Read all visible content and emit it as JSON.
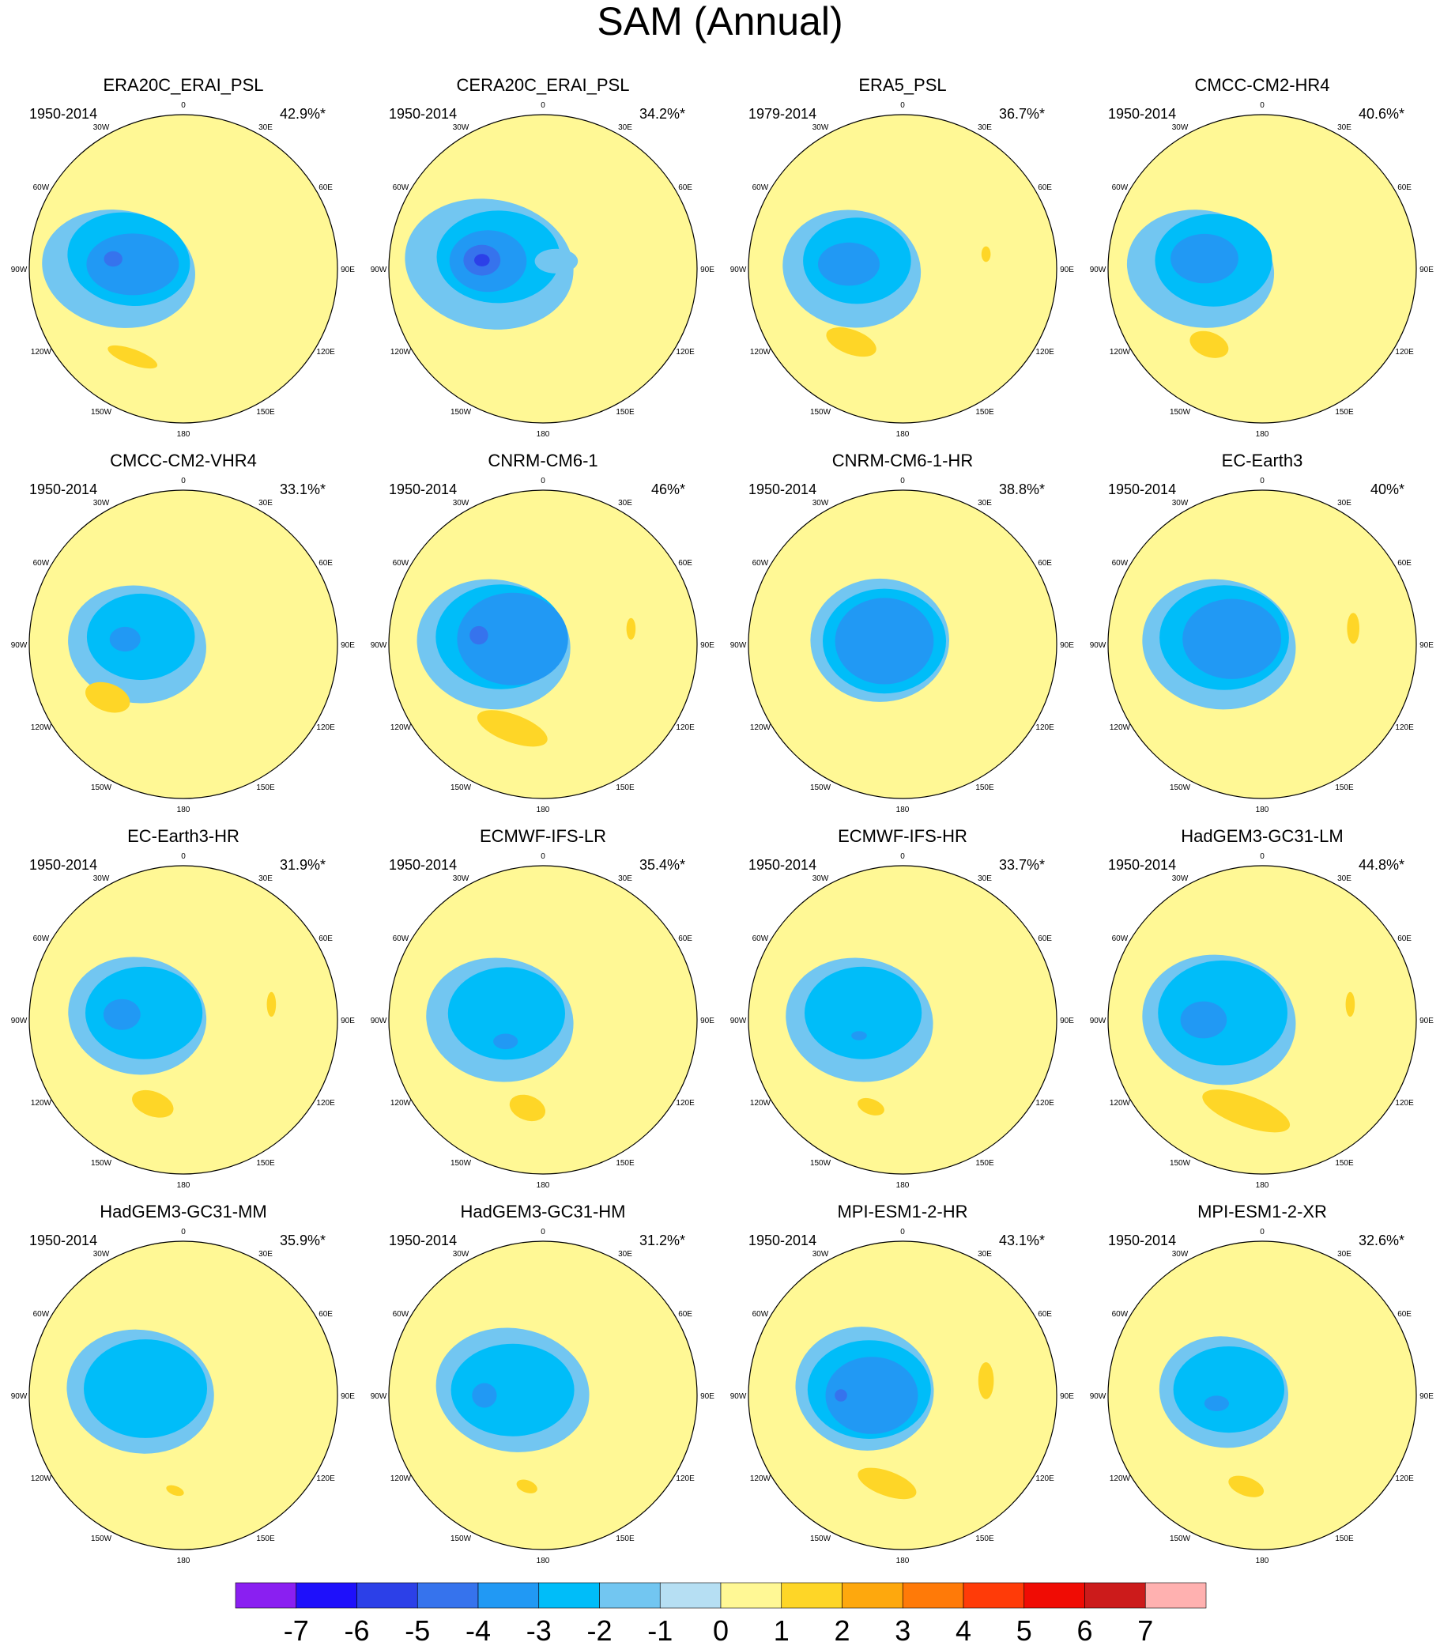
{
  "chart_data": {
    "type": "heatmap",
    "title": "SAM (Annual)",
    "projection": "south-polar stereographic",
    "longitude_labels": [
      "0",
      "30E",
      "60E",
      "90E",
      "120E",
      "150E",
      "180",
      "150W",
      "120W",
      "90W",
      "60W",
      "30W"
    ],
    "panels": [
      {
        "name": "ERA20C_ERAI_PSL",
        "period": "1950-2014",
        "variance": "42.9%*",
        "blobs": [
          {
            "lon": -90,
            "r": 0.42,
            "a": 0.5,
            "b": 0.38,
            "rot": 10,
            "value": -1
          },
          {
            "lon": -80,
            "r": 0.36,
            "a": 0.4,
            "b": 0.3,
            "rot": 10,
            "value": -2
          },
          {
            "lon": -85,
            "r": 0.33,
            "a": 0.3,
            "b": 0.2,
            "rot": 0,
            "value": -3
          },
          {
            "lon": -82,
            "r": 0.46,
            "a": 0.06,
            "b": 0.05,
            "rot": 0,
            "value": -4
          },
          {
            "lon": -150,
            "r": 0.66,
            "a": 0.17,
            "b": 0.05,
            "rot": 20,
            "value": 1.5
          }
        ]
      },
      {
        "name": "CERA20C_ERAI_PSL",
        "period": "1950-2014",
        "variance": "34.2%*",
        "blobs": [
          {
            "lon": -85,
            "r": 0.35,
            "a": 0.55,
            "b": 0.42,
            "rot": 10,
            "value": -1
          },
          {
            "lon": -75,
            "r": 0.3,
            "a": 0.4,
            "b": 0.3,
            "rot": 0,
            "value": -2
          },
          {
            "lon": -82,
            "r": 0.36,
            "a": 0.25,
            "b": 0.2,
            "rot": 0,
            "value": -3
          },
          {
            "lon": -82,
            "r": 0.4,
            "a": 0.12,
            "b": 0.1,
            "rot": 0,
            "value": -4
          },
          {
            "lon": -82,
            "r": 0.4,
            "a": 0.05,
            "b": 0.04,
            "rot": 0,
            "value": -5
          },
          {
            "lon": 60,
            "r": 0.1,
            "a": 0.14,
            "b": 0.08,
            "rot": 0,
            "value": -1
          }
        ]
      },
      {
        "name": "ERA5_PSL",
        "period": "1979-2014",
        "variance": "36.7%*",
        "blobs": [
          {
            "lon": -90,
            "r": 0.33,
            "a": 0.45,
            "b": 0.38,
            "rot": 10,
            "value": -1
          },
          {
            "lon": -80,
            "r": 0.3,
            "a": 0.35,
            "b": 0.28,
            "rot": 0,
            "value": -2
          },
          {
            "lon": -85,
            "r": 0.35,
            "a": 0.2,
            "b": 0.14,
            "rot": 0,
            "value": -3
          },
          {
            "lon": -145,
            "r": 0.58,
            "a": 0.17,
            "b": 0.08,
            "rot": 20,
            "value": 1.5
          },
          {
            "lon": 80,
            "r": 0.55,
            "a": 0.03,
            "b": 0.05,
            "rot": 0,
            "value": 1.5
          }
        ]
      },
      {
        "name": "CMCC-CM2-HR4",
        "period": "1950-2014",
        "variance": "40.6%*",
        "blobs": [
          {
            "lon": -90,
            "r": 0.4,
            "a": 0.48,
            "b": 0.38,
            "rot": 10,
            "value": -1
          },
          {
            "lon": -80,
            "r": 0.32,
            "a": 0.38,
            "b": 0.3,
            "rot": 0,
            "value": -2
          },
          {
            "lon": -80,
            "r": 0.38,
            "a": 0.22,
            "b": 0.16,
            "rot": 0,
            "value": -3
          },
          {
            "lon": -145,
            "r": 0.6,
            "a": 0.13,
            "b": 0.08,
            "rot": 20,
            "value": 1.5
          }
        ]
      },
      {
        "name": "CMCC-CM2-VHR4",
        "period": "1950-2014",
        "variance": "33.1%*",
        "blobs": [
          {
            "lon": -90,
            "r": 0.3,
            "a": 0.45,
            "b": 0.38,
            "rot": 10,
            "value": -1
          },
          {
            "lon": -80,
            "r": 0.28,
            "a": 0.35,
            "b": 0.28,
            "rot": 0,
            "value": -2
          },
          {
            "lon": -85,
            "r": 0.38,
            "a": 0.1,
            "b": 0.08,
            "rot": 0,
            "value": -3
          },
          {
            "lon": -125,
            "r": 0.6,
            "a": 0.15,
            "b": 0.09,
            "rot": 20,
            "value": 1.5
          }
        ]
      },
      {
        "name": "CNRM-CM6-1",
        "period": "1950-2014",
        "variance": "46%*",
        "blobs": [
          {
            "lon": -90,
            "r": 0.32,
            "a": 0.5,
            "b": 0.42,
            "rot": 10,
            "value": -1
          },
          {
            "lon": -80,
            "r": 0.28,
            "a": 0.42,
            "b": 0.34,
            "rot": 0,
            "value": -2
          },
          {
            "lon": -80,
            "r": 0.2,
            "a": 0.36,
            "b": 0.3,
            "rot": 0,
            "value": -3
          },
          {
            "lon": -82,
            "r": 0.42,
            "a": 0.06,
            "b": 0.06,
            "rot": 0,
            "value": -4
          },
          {
            "lon": -160,
            "r": 0.58,
            "a": 0.24,
            "b": 0.09,
            "rot": 20,
            "value": 1.5
          },
          {
            "lon": 80,
            "r": 0.58,
            "a": 0.03,
            "b": 0.07,
            "rot": 0,
            "value": 1.5
          }
        ]
      },
      {
        "name": "CNRM-CM6-1-HR",
        "period": "1950-2014",
        "variance": "38.8%*",
        "blobs": [
          {
            "lon": -80,
            "r": 0.15,
            "a": 0.45,
            "b": 0.4,
            "rot": 0,
            "value": -1
          },
          {
            "lon": -80,
            "r": 0.12,
            "a": 0.4,
            "b": 0.34,
            "rot": 0,
            "value": -2
          },
          {
            "lon": -80,
            "r": 0.12,
            "a": 0.32,
            "b": 0.28,
            "rot": 0,
            "value": -3
          }
        ]
      },
      {
        "name": "EC-Earth3",
        "period": "1950-2014",
        "variance": "40%*",
        "blobs": [
          {
            "lon": -90,
            "r": 0.28,
            "a": 0.5,
            "b": 0.42,
            "rot": 10,
            "value": -1
          },
          {
            "lon": -80,
            "r": 0.25,
            "a": 0.42,
            "b": 0.34,
            "rot": 0,
            "value": -2
          },
          {
            "lon": -80,
            "r": 0.2,
            "a": 0.32,
            "b": 0.26,
            "rot": 0,
            "value": -3
          },
          {
            "lon": 80,
            "r": 0.6,
            "a": 0.04,
            "b": 0.1,
            "rot": 0,
            "value": 1.5
          }
        ]
      },
      {
        "name": "EC-Earth3-HR",
        "period": "1950-2014",
        "variance": "31.9%*",
        "blobs": [
          {
            "lon": -85,
            "r": 0.3,
            "a": 0.45,
            "b": 0.38,
            "rot": 10,
            "value": -1
          },
          {
            "lon": -80,
            "r": 0.26,
            "a": 0.38,
            "b": 0.3,
            "rot": 0,
            "value": -2
          },
          {
            "lon": -85,
            "r": 0.4,
            "a": 0.12,
            "b": 0.1,
            "rot": 0,
            "value": -3
          },
          {
            "lon": -160,
            "r": 0.58,
            "a": 0.14,
            "b": 0.08,
            "rot": 20,
            "value": 1.5
          },
          {
            "lon": 80,
            "r": 0.58,
            "a": 0.03,
            "b": 0.08,
            "rot": 0,
            "value": 1.5
          }
        ]
      },
      {
        "name": "ECMWF-IFS-LR",
        "period": "1950-2014",
        "variance": "35.4%*",
        "blobs": [
          {
            "lon": -90,
            "r": 0.28,
            "a": 0.48,
            "b": 0.4,
            "rot": 10,
            "value": -1
          },
          {
            "lon": -80,
            "r": 0.24,
            "a": 0.38,
            "b": 0.3,
            "rot": 0,
            "value": -2
          },
          {
            "lon": -120,
            "r": 0.28,
            "a": 0.08,
            "b": 0.05,
            "rot": 0,
            "value": -3
          },
          {
            "lon": -170,
            "r": 0.58,
            "a": 0.12,
            "b": 0.08,
            "rot": 20,
            "value": 1.5
          }
        ]
      },
      {
        "name": "ECMWF-IFS-HR",
        "period": "1950-2014",
        "variance": "33.7%*",
        "blobs": [
          {
            "lon": -90,
            "r": 0.28,
            "a": 0.48,
            "b": 0.4,
            "rot": 10,
            "value": -1
          },
          {
            "lon": -80,
            "r": 0.26,
            "a": 0.38,
            "b": 0.3,
            "rot": 0,
            "value": -2
          },
          {
            "lon": -110,
            "r": 0.3,
            "a": 0.05,
            "b": 0.03,
            "rot": 0,
            "value": -3
          },
          {
            "lon": -160,
            "r": 0.6,
            "a": 0.09,
            "b": 0.05,
            "rot": 20,
            "value": 1.5
          }
        ]
      },
      {
        "name": "HadGEM3-GC31-LM",
        "period": "1950-2014",
        "variance": "44.8%*",
        "blobs": [
          {
            "lon": -90,
            "r": 0.28,
            "a": 0.5,
            "b": 0.42,
            "rot": 10,
            "value": -1
          },
          {
            "lon": -80,
            "r": 0.26,
            "a": 0.42,
            "b": 0.34,
            "rot": 0,
            "value": -2
          },
          {
            "lon": -90,
            "r": 0.38,
            "a": 0.15,
            "b": 0.12,
            "rot": 0,
            "value": -3
          },
          {
            "lon": -170,
            "r": 0.6,
            "a": 0.3,
            "b": 0.1,
            "rot": 20,
            "value": 1.5
          },
          {
            "lon": 80,
            "r": 0.58,
            "a": 0.03,
            "b": 0.08,
            "rot": 0,
            "value": 1.5
          }
        ]
      },
      {
        "name": "HadGEM3-GC31-MM",
        "period": "1950-2014",
        "variance": "35.9%*",
        "blobs": [
          {
            "lon": -85,
            "r": 0.28,
            "a": 0.48,
            "b": 0.4,
            "rot": 10,
            "value": -1
          },
          {
            "lon": -80,
            "r": 0.25,
            "a": 0.4,
            "b": 0.32,
            "rot": 0,
            "value": -2
          },
          {
            "lon": -175,
            "r": 0.62,
            "a": 0.06,
            "b": 0.03,
            "rot": 20,
            "value": 1.5
          }
        ]
      },
      {
        "name": "HadGEM3-GC31-HM",
        "period": "1950-2014",
        "variance": "31.2%*",
        "blobs": [
          {
            "lon": -80,
            "r": 0.2,
            "a": 0.5,
            "b": 0.4,
            "rot": 10,
            "value": -1
          },
          {
            "lon": -80,
            "r": 0.2,
            "a": 0.4,
            "b": 0.3,
            "rot": 0,
            "value": -2
          },
          {
            "lon": -90,
            "r": 0.38,
            "a": 0.08,
            "b": 0.08,
            "rot": 0,
            "value": -3
          },
          {
            "lon": -170,
            "r": 0.6,
            "a": 0.07,
            "b": 0.04,
            "rot": 20,
            "value": 1.5
          }
        ]
      },
      {
        "name": "MPI-ESM1-2-HR",
        "period": "1950-2014",
        "variance": "43.1%*",
        "blobs": [
          {
            "lon": -80,
            "r": 0.25,
            "a": 0.45,
            "b": 0.4,
            "rot": 10,
            "value": -1
          },
          {
            "lon": -80,
            "r": 0.22,
            "a": 0.4,
            "b": 0.32,
            "rot": 0,
            "value": -2
          },
          {
            "lon": -90,
            "r": 0.2,
            "a": 0.3,
            "b": 0.25,
            "rot": 0,
            "value": -3
          },
          {
            "lon": -90,
            "r": 0.4,
            "a": 0.04,
            "b": 0.04,
            "rot": 0,
            "value": -4
          },
          {
            "lon": -170,
            "r": 0.58,
            "a": 0.2,
            "b": 0.08,
            "rot": 20,
            "value": 1.5
          },
          {
            "lon": 80,
            "r": 0.55,
            "a": 0.05,
            "b": 0.12,
            "rot": 0,
            "value": 1.5
          }
        ]
      },
      {
        "name": "MPI-ESM1-2-XR",
        "period": "1950-2014",
        "variance": "32.6%*",
        "blobs": [
          {
            "lon": -85,
            "r": 0.25,
            "a": 0.42,
            "b": 0.36,
            "rot": 10,
            "value": -1
          },
          {
            "lon": -80,
            "r": 0.22,
            "a": 0.36,
            "b": 0.28,
            "rot": 0,
            "value": -2
          },
          {
            "lon": -100,
            "r": 0.3,
            "a": 0.08,
            "b": 0.05,
            "rot": 0,
            "value": -3
          },
          {
            "lon": -170,
            "r": 0.6,
            "a": 0.12,
            "b": 0.06,
            "rot": 20,
            "value": 1.5
          }
        ]
      }
    ],
    "colorbar": {
      "labels": [
        "-7",
        "-6",
        "-5",
        "-4",
        "-3",
        "-2",
        "-1",
        "0",
        "1",
        "2",
        "3",
        "4",
        "5",
        "6",
        "7"
      ],
      "colors": [
        "#8a1ff1",
        "#1e10fb",
        "#2c40e8",
        "#3673ed",
        "#2199f4",
        "#00bdf9",
        "#72c6f1",
        "#b6dff3",
        "#fff895",
        "#fed627",
        "#fea80d",
        "#ff7a08",
        "#ff3b08",
        "#f00c04",
        "#cc1b1b",
        "#ffb1b0"
      ]
    },
    "colors": {
      "background_positive": "#fff895",
      "land_outline": "#606060"
    }
  }
}
